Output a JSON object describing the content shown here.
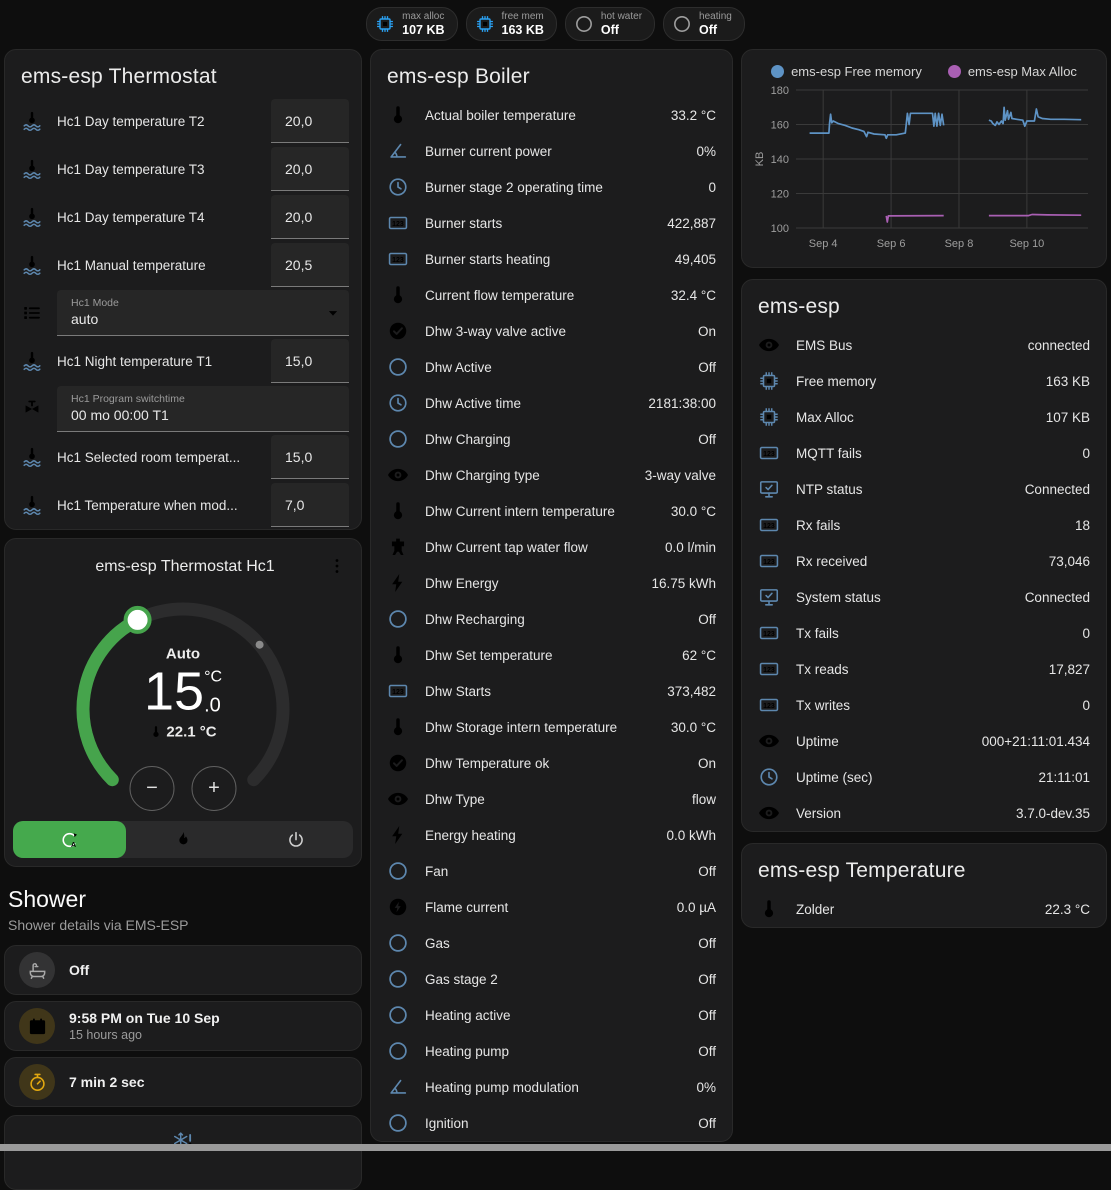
{
  "header": {
    "badges": [
      {
        "icon": "cpu",
        "style": "blue",
        "label": "max alloc",
        "value": "107 KB"
      },
      {
        "icon": "cpu",
        "style": "blue",
        "label": "free mem",
        "value": "163 KB"
      },
      {
        "icon": "circle-outline",
        "style": "gray",
        "label": "hot water",
        "value": "Off"
      },
      {
        "icon": "circle-outline",
        "style": "gray",
        "label": "heating",
        "value": "Off"
      }
    ]
  },
  "thermostat": {
    "title": "ems-esp Thermostat",
    "rows": [
      {
        "icon": "thermometer-water",
        "name": "Hc1 Day temperature T2",
        "control": {
          "type": "input",
          "value": "20,0"
        }
      },
      {
        "icon": "thermometer-water",
        "name": "Hc1 Day temperature T3",
        "control": {
          "type": "input",
          "value": "20,0"
        }
      },
      {
        "icon": "thermometer-water",
        "name": "Hc1 Day temperature T4",
        "control": {
          "type": "input",
          "value": "20,0"
        }
      },
      {
        "icon": "thermometer-water",
        "name": "Hc1 Manual temperature",
        "control": {
          "type": "input",
          "value": "20,5"
        }
      },
      {
        "icon": "format-list",
        "name": "",
        "control": {
          "type": "select",
          "label": "Hc1 Mode",
          "value": "auto"
        }
      },
      {
        "icon": "thermometer-water",
        "name": "Hc1 Night temperature T1",
        "control": {
          "type": "input",
          "value": "15,0"
        }
      },
      {
        "icon": "switchtime",
        "name": "",
        "control": {
          "type": "box",
          "label": "Hc1 Program switchtime",
          "value": "00 mo 00:00 T1"
        }
      },
      {
        "icon": "thermometer-water",
        "name": "Hc1 Selected room temperat...",
        "control": {
          "type": "input",
          "value": "15,0"
        }
      },
      {
        "icon": "thermometer-water",
        "name": "Hc1 Temperature when mod...",
        "control": {
          "type": "input",
          "value": "7,0"
        }
      }
    ]
  },
  "hc1": {
    "title": "ems-esp Thermostat Hc1",
    "mode_label": "Auto",
    "temp_int": "15",
    "temp_dec": ".0",
    "temp_unit": "°C",
    "current_temp": "22.1 °C",
    "minus_label": "−",
    "plus_label": "+",
    "modes": [
      {
        "icon": "auto",
        "active": true
      },
      {
        "icon": "flame",
        "active": false
      },
      {
        "icon": "power",
        "active": false
      }
    ],
    "accent_green": "#45a94d"
  },
  "shower": {
    "title": "Shower",
    "subtitle": "Shower details via EMS-ESP",
    "rows": [
      {
        "icon": "bathtub",
        "style": "gray",
        "value": "Off",
        "sub": ""
      },
      {
        "icon": "calendar",
        "style": "amber",
        "value": "9:58 PM on Tue 10 Sep",
        "sub": "15 hours ago"
      },
      {
        "icon": "timer",
        "style": "amber",
        "value": "7 min 2 sec",
        "sub": ""
      }
    ],
    "alert_icon": "snowflake-alert"
  },
  "boiler": {
    "title": "ems-esp Boiler",
    "rows": [
      {
        "icon": "thermometer",
        "name": "Actual boiler temperature",
        "value": "33.2 °C"
      },
      {
        "icon": "angle",
        "name": "Burner current power",
        "value": "0%"
      },
      {
        "icon": "clock",
        "name": "Burner stage 2 operating time",
        "value": "0"
      },
      {
        "icon": "counter",
        "name": "Burner starts",
        "value": "422,887"
      },
      {
        "icon": "counter",
        "name": "Burner starts heating",
        "value": "49,405"
      },
      {
        "icon": "thermometer",
        "name": "Current flow temperature",
        "value": "32.4 °C"
      },
      {
        "icon": "check-circle",
        "name": "Dhw 3-way valve active",
        "value": "On"
      },
      {
        "icon": "circle-outline",
        "name": "Dhw Active",
        "value": "Off"
      },
      {
        "icon": "clock",
        "name": "Dhw Active time",
        "value": "2181:38:00"
      },
      {
        "icon": "circle-outline",
        "name": "Dhw Charging",
        "value": "Off"
      },
      {
        "icon": "eye",
        "name": "Dhw Charging type",
        "value": "3-way valve"
      },
      {
        "icon": "thermometer",
        "name": "Dhw Current intern temperature",
        "value": "30.0 °C"
      },
      {
        "icon": "water-pump",
        "name": "Dhw Current tap water flow",
        "value": "0.0 l/min"
      },
      {
        "icon": "flash",
        "name": "Dhw Energy",
        "value": "16.75 kWh"
      },
      {
        "icon": "circle-outline",
        "name": "Dhw Recharging",
        "value": "Off"
      },
      {
        "icon": "thermometer",
        "name": "Dhw Set temperature",
        "value": "62 °C"
      },
      {
        "icon": "counter",
        "name": "Dhw Starts",
        "value": "373,482"
      },
      {
        "icon": "thermometer",
        "name": "Dhw Storage intern temperature",
        "value": "30.0 °C"
      },
      {
        "icon": "check-circle",
        "name": "Dhw Temperature ok",
        "value": "On"
      },
      {
        "icon": "eye",
        "name": "Dhw Type",
        "value": "flow"
      },
      {
        "icon": "flash",
        "name": "Energy heating",
        "value": "0.0 kWh"
      },
      {
        "icon": "circle-outline",
        "name": "Fan",
        "value": "Off"
      },
      {
        "icon": "flash-circle",
        "name": "Flame current",
        "value": "0.0 µA"
      },
      {
        "icon": "circle-outline",
        "name": "Gas",
        "value": "Off"
      },
      {
        "icon": "circle-outline",
        "name": "Gas stage 2",
        "value": "Off"
      },
      {
        "icon": "circle-outline",
        "name": "Heating active",
        "value": "Off"
      },
      {
        "icon": "circle-outline",
        "name": "Heating pump",
        "value": "Off"
      },
      {
        "icon": "angle",
        "name": "Heating pump modulation",
        "value": "0%"
      },
      {
        "icon": "circle-outline",
        "name": "Ignition",
        "value": "Off"
      }
    ]
  },
  "emsesp": {
    "title": "ems-esp",
    "rows": [
      {
        "icon": "eye",
        "name": "EMS Bus",
        "value": "connected"
      },
      {
        "icon": "cpu",
        "name": "Free memory",
        "value": "163 KB"
      },
      {
        "icon": "cpu",
        "name": "Max Alloc",
        "value": "107 KB"
      },
      {
        "icon": "counter",
        "name": "MQTT fails",
        "value": "0"
      },
      {
        "icon": "monitor-check",
        "name": "NTP status",
        "value": "Connected"
      },
      {
        "icon": "counter",
        "name": "Rx fails",
        "value": "18"
      },
      {
        "icon": "counter",
        "name": "Rx received",
        "value": "73,046"
      },
      {
        "icon": "monitor-check",
        "name": "System status",
        "value": "Connected"
      },
      {
        "icon": "counter",
        "name": "Tx fails",
        "value": "0"
      },
      {
        "icon": "counter",
        "name": "Tx reads",
        "value": "17,827"
      },
      {
        "icon": "counter",
        "name": "Tx writes",
        "value": "0"
      },
      {
        "icon": "eye",
        "name": "Uptime",
        "value": "000+21:11:01.434"
      },
      {
        "icon": "clock",
        "name": "Uptime (sec)",
        "value": "21:11:01"
      },
      {
        "icon": "eye",
        "name": "Version",
        "value": "3.7.0-dev.35"
      }
    ]
  },
  "temperature": {
    "title": "ems-esp Temperature",
    "rows": [
      {
        "icon": "thermometer",
        "name": "Zolder",
        "value": "22.3 °C"
      }
    ]
  },
  "chart_data": {
    "type": "line",
    "title": "",
    "xlabel": "",
    "ylabel": "KB",
    "xlim": [
      3.2,
      11.8
    ],
    "ylim": [
      100,
      180
    ],
    "grid": true,
    "legend_position": "top",
    "yticks": [
      100,
      120,
      140,
      160,
      180
    ],
    "xticks": [
      {
        "v": 4,
        "label": "Sep 4"
      },
      {
        "v": 6,
        "label": "Sep 6"
      },
      {
        "v": 8,
        "label": "Sep 8"
      },
      {
        "v": 10,
        "label": "Sep 10"
      }
    ],
    "series": [
      {
        "name": "ems-esp Free memory",
        "color": "#5e93c5",
        "points": [
          [
            3.6,
            155
          ],
          [
            4.17,
            155
          ],
          [
            4.19,
            161
          ],
          [
            4.22,
            166
          ],
          [
            4.25,
            161
          ],
          [
            4.3,
            162
          ],
          [
            4.45,
            160.5
          ],
          [
            4.65,
            159.5
          ],
          [
            4.85,
            158
          ],
          [
            5.05,
            157
          ],
          [
            5.2,
            156
          ],
          [
            5.28,
            153
          ],
          [
            5.32,
            155.5
          ],
          [
            5.5,
            154.5
          ],
          [
            5.82,
            154
          ],
          [
            5.86,
            152
          ],
          [
            5.9,
            154
          ],
          [
            6.15,
            154
          ],
          [
            6.42,
            155
          ],
          [
            6.48,
            166.5
          ],
          [
            6.53,
            160
          ],
          [
            6.57,
            166.5
          ],
          [
            7.22,
            166.5
          ],
          [
            7.26,
            159
          ],
          [
            7.3,
            166.5
          ],
          [
            7.35,
            159
          ],
          [
            7.4,
            166.5
          ],
          [
            7.45,
            159.5
          ],
          [
            7.5,
            166
          ],
          [
            7.55,
            159.5
          ],
          null,
          [
            8.88,
            162.5
          ],
          [
            8.95,
            162
          ],
          [
            9.0,
            160.5
          ],
          [
            9.07,
            159.5
          ],
          [
            9.12,
            161.5
          ],
          [
            9.18,
            160
          ],
          [
            9.25,
            162
          ],
          [
            9.3,
            160.5
          ],
          [
            9.33,
            170
          ],
          [
            9.36,
            162.5
          ],
          [
            9.43,
            168
          ],
          [
            9.46,
            163
          ],
          [
            9.53,
            167
          ],
          [
            9.56,
            163.5
          ],
          [
            9.7,
            163
          ],
          [
            9.88,
            162.5
          ],
          [
            9.94,
            159
          ],
          [
            10.0,
            162
          ],
          [
            10.22,
            162
          ],
          [
            10.28,
            169
          ],
          [
            10.33,
            164.5
          ],
          [
            10.45,
            163.5
          ],
          [
            10.7,
            163
          ],
          [
            11.1,
            163
          ],
          [
            11.6,
            162.8
          ]
        ]
      },
      {
        "name": "ems-esp Max Alloc",
        "color": "#a95fb3",
        "points": [
          [
            5.86,
            107
          ],
          [
            5.89,
            103.5
          ],
          [
            5.92,
            107
          ],
          [
            7.55,
            107.2
          ],
          null,
          [
            8.88,
            107.2
          ],
          [
            10.05,
            107.2
          ],
          [
            10.15,
            107.8
          ],
          [
            10.6,
            107.6
          ],
          [
            11.6,
            107.4
          ]
        ]
      }
    ]
  }
}
